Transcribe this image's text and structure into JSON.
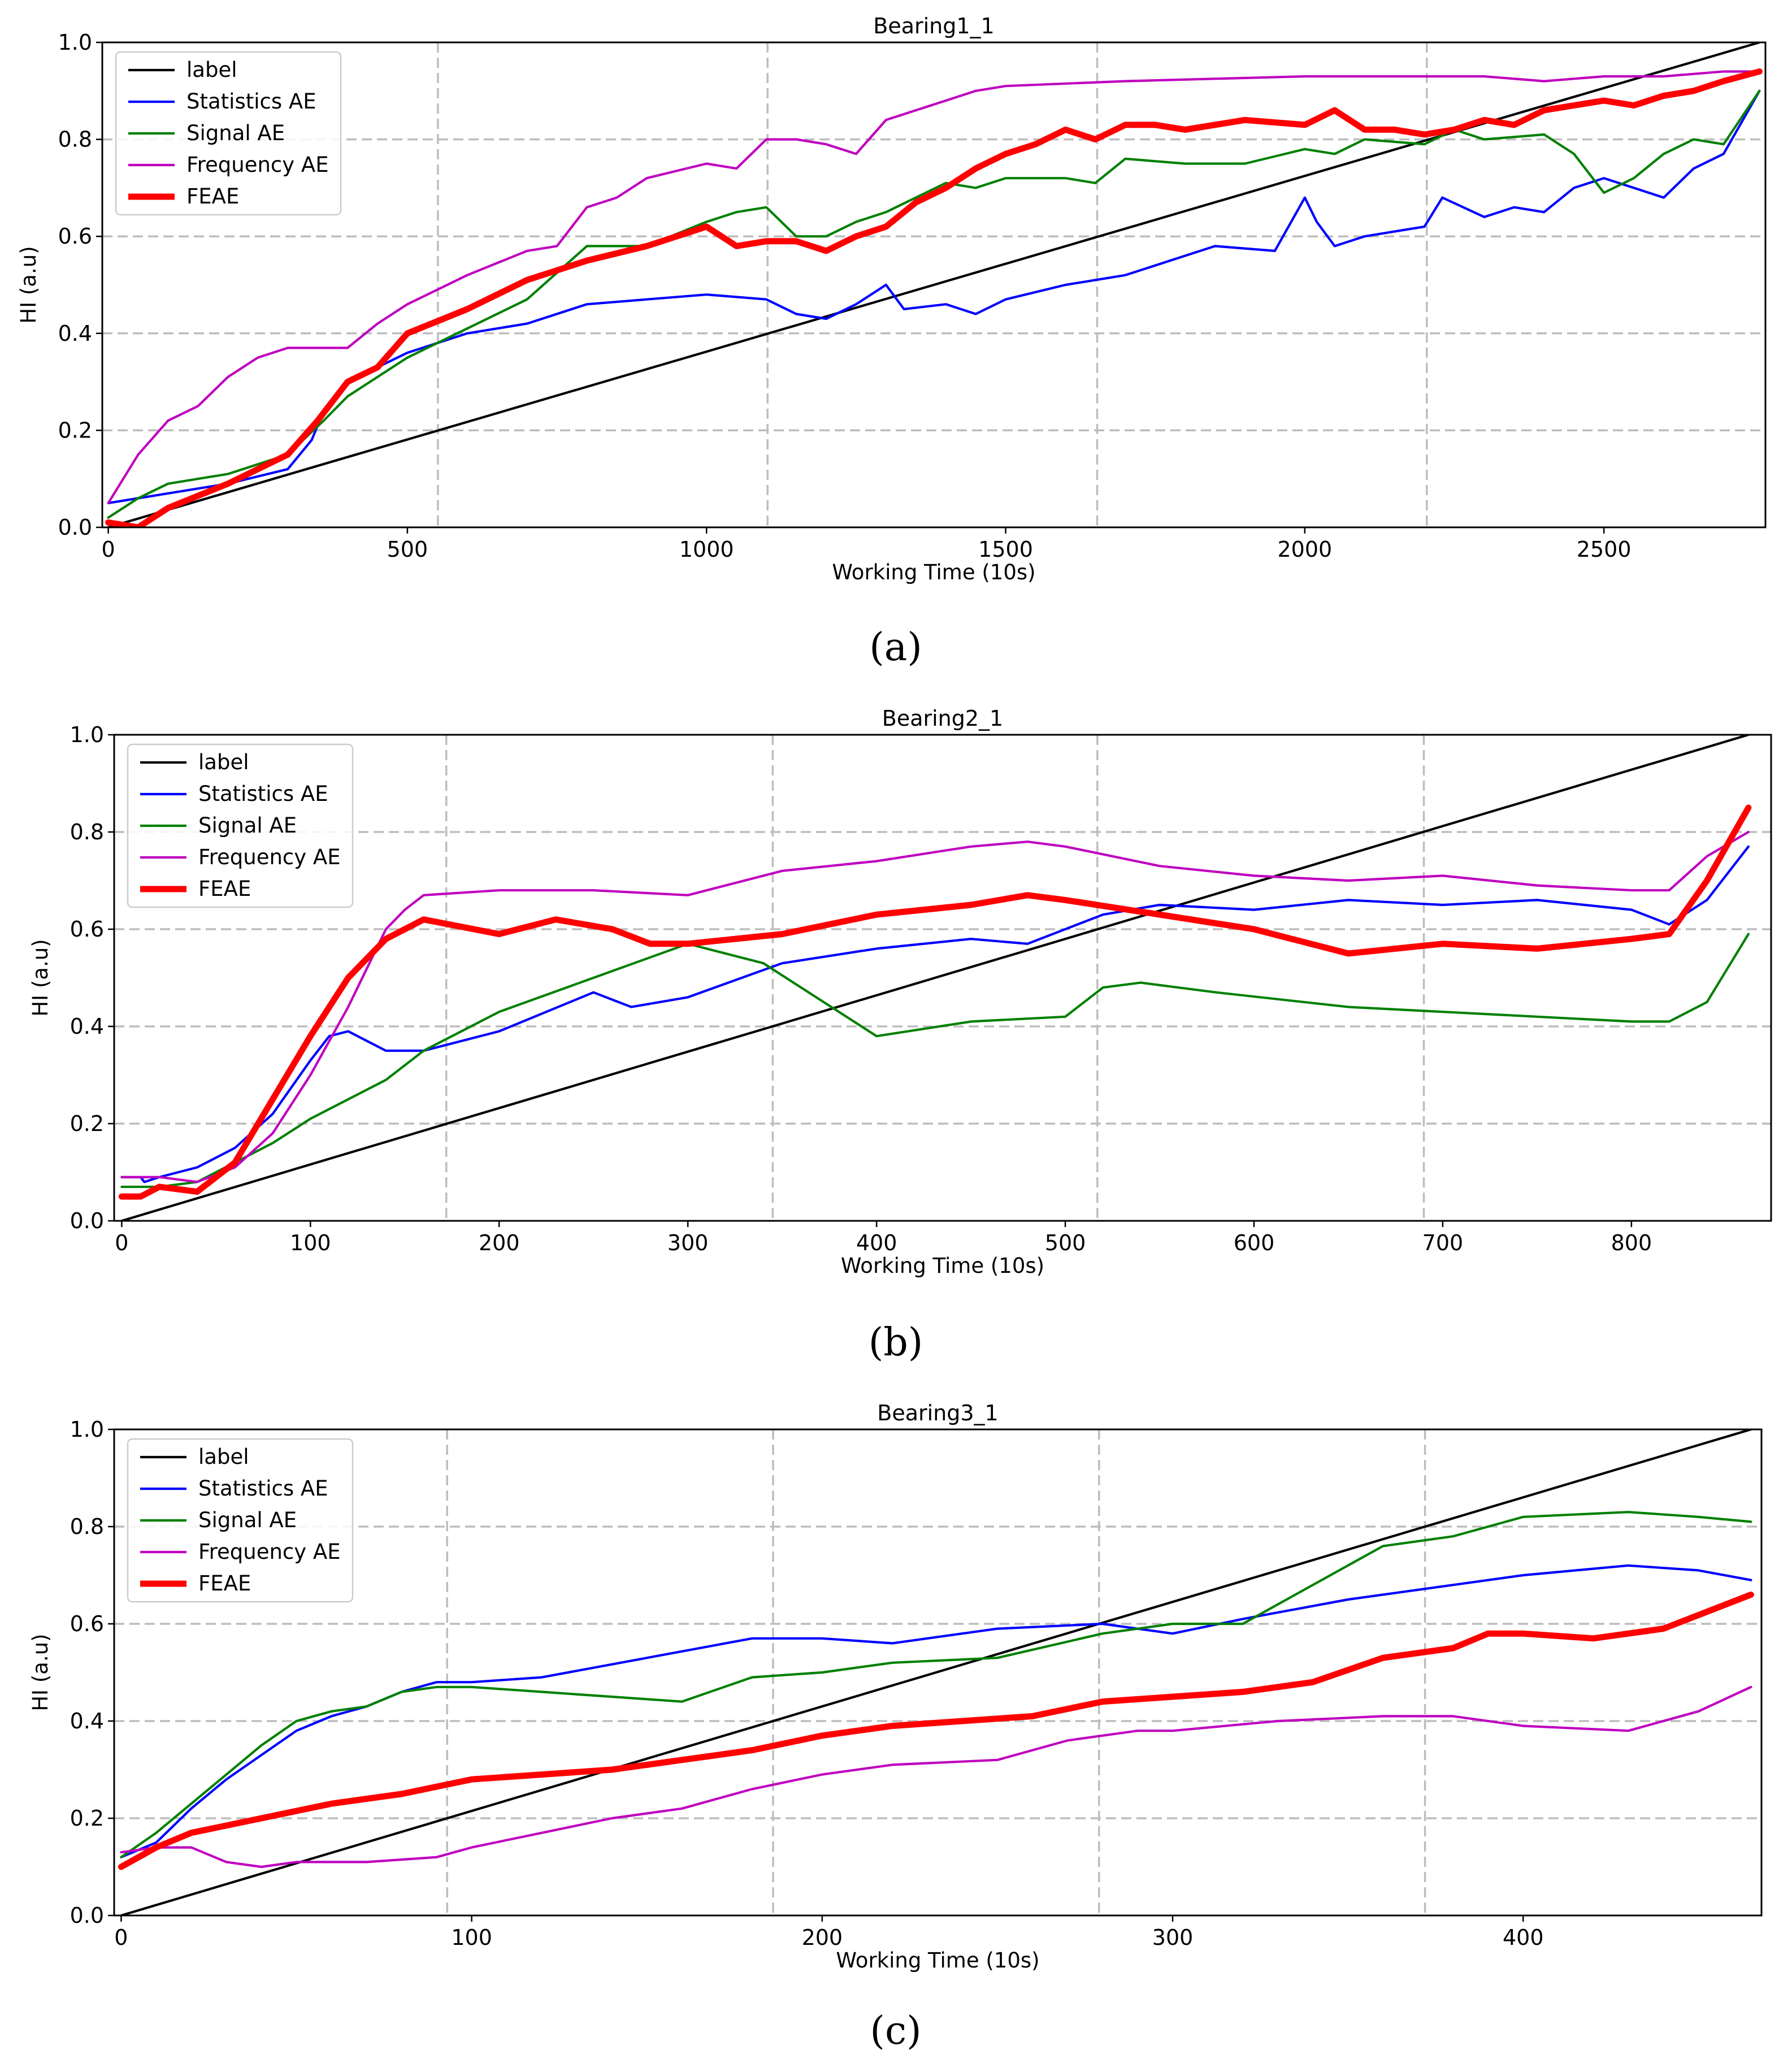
{
  "chart_data": [
    {
      "type": "line",
      "caption": "(a)",
      "title": "Bearing1_1",
      "xlabel": "Working Time (10s)",
      "ylabel": "HI (a.u)",
      "xlim": [
        -10,
        2770
      ],
      "ylim": [
        0.0,
        1.0
      ],
      "xticks": [
        0,
        500,
        1000,
        1500,
        2000,
        2500
      ],
      "yticks": [
        0.0,
        0.2,
        0.4,
        0.6,
        0.8,
        1.0
      ],
      "ytick_labels": [
        "0.0",
        "0.2",
        "0.4",
        "0.6",
        "0.8",
        "1.0"
      ],
      "dashed_vlines": [
        551,
        1102,
        1653,
        2204
      ],
      "dashed_hlines": [
        0.2,
        0.4,
        0.6,
        0.8
      ],
      "legend_position": "top-left",
      "series": [
        {
          "name": "label",
          "color": "#000000",
          "style": "thin",
          "x": [
            0,
            2760
          ],
          "y": [
            0.0,
            1.0
          ]
        },
        {
          "name": "Statistics AE",
          "color": "#0000ff",
          "style": "thin",
          "x": [
            0,
            50,
            100,
            200,
            300,
            340,
            360,
            400,
            500,
            600,
            700,
            800,
            900,
            1000,
            1100,
            1150,
            1200,
            1250,
            1300,
            1330,
            1400,
            1450,
            1500,
            1600,
            1700,
            1800,
            1850,
            1950,
            2000,
            2020,
            2050,
            2100,
            2150,
            2200,
            2230,
            2300,
            2350,
            2400,
            2450,
            2500,
            2550,
            2600,
            2650,
            2700,
            2760
          ],
          "y": [
            0.05,
            0.06,
            0.07,
            0.09,
            0.12,
            0.18,
            0.24,
            0.3,
            0.36,
            0.4,
            0.42,
            0.46,
            0.47,
            0.48,
            0.47,
            0.44,
            0.43,
            0.46,
            0.5,
            0.45,
            0.46,
            0.44,
            0.47,
            0.5,
            0.52,
            0.56,
            0.58,
            0.57,
            0.68,
            0.63,
            0.58,
            0.6,
            0.61,
            0.62,
            0.68,
            0.64,
            0.66,
            0.65,
            0.7,
            0.72,
            0.7,
            0.68,
            0.74,
            0.77,
            0.9
          ]
        },
        {
          "name": "Signal AE",
          "color": "#008000",
          "style": "thin",
          "x": [
            0,
            50,
            100,
            200,
            300,
            360,
            400,
            500,
            600,
            700,
            800,
            900,
            1000,
            1050,
            1100,
            1150,
            1200,
            1250,
            1300,
            1400,
            1450,
            1500,
            1600,
            1650,
            1700,
            1800,
            1900,
            2000,
            2050,
            2100,
            2200,
            2250,
            2300,
            2400,
            2450,
            2500,
            2550,
            2600,
            2650,
            2700,
            2760
          ],
          "y": [
            0.02,
            0.06,
            0.09,
            0.11,
            0.15,
            0.22,
            0.27,
            0.35,
            0.41,
            0.47,
            0.58,
            0.58,
            0.63,
            0.65,
            0.66,
            0.6,
            0.6,
            0.63,
            0.65,
            0.71,
            0.7,
            0.72,
            0.72,
            0.71,
            0.76,
            0.75,
            0.75,
            0.78,
            0.77,
            0.8,
            0.79,
            0.82,
            0.8,
            0.81,
            0.77,
            0.69,
            0.72,
            0.77,
            0.8,
            0.79,
            0.9
          ]
        },
        {
          "name": "Frequency AE",
          "color": "#bf00bf",
          "style": "thin",
          "x": [
            0,
            50,
            100,
            150,
            200,
            250,
            300,
            350,
            400,
            450,
            500,
            550,
            600,
            700,
            750,
            800,
            850,
            900,
            1000,
            1050,
            1100,
            1150,
            1200,
            1250,
            1300,
            1350,
            1400,
            1450,
            1500,
            1700,
            2000,
            2200,
            2300,
            2400,
            2500,
            2600,
            2700,
            2760
          ],
          "y": [
            0.05,
            0.15,
            0.22,
            0.25,
            0.31,
            0.35,
            0.37,
            0.37,
            0.37,
            0.42,
            0.46,
            0.49,
            0.52,
            0.57,
            0.58,
            0.66,
            0.68,
            0.72,
            0.75,
            0.74,
            0.8,
            0.8,
            0.79,
            0.77,
            0.84,
            0.86,
            0.88,
            0.9,
            0.91,
            0.92,
            0.93,
            0.93,
            0.93,
            0.92,
            0.93,
            0.93,
            0.94,
            0.94
          ]
        },
        {
          "name": "FEAE",
          "color": "#ff0000",
          "style": "thick",
          "x": [
            0,
            50,
            100,
            200,
            300,
            350,
            400,
            450,
            500,
            600,
            700,
            750,
            800,
            900,
            1000,
            1050,
            1100,
            1150,
            1200,
            1250,
            1300,
            1350,
            1400,
            1450,
            1500,
            1550,
            1600,
            1650,
            1700,
            1750,
            1800,
            1900,
            2000,
            2050,
            2100,
            2150,
            2200,
            2250,
            2300,
            2350,
            2400,
            2450,
            2500,
            2550,
            2600,
            2650,
            2700,
            2760
          ],
          "y": [
            0.01,
            0.0,
            0.04,
            0.09,
            0.15,
            0.22,
            0.3,
            0.33,
            0.4,
            0.45,
            0.51,
            0.53,
            0.55,
            0.58,
            0.62,
            0.58,
            0.59,
            0.59,
            0.57,
            0.6,
            0.62,
            0.67,
            0.7,
            0.74,
            0.77,
            0.79,
            0.82,
            0.8,
            0.83,
            0.83,
            0.82,
            0.84,
            0.83,
            0.86,
            0.82,
            0.82,
            0.81,
            0.82,
            0.84,
            0.83,
            0.86,
            0.87,
            0.88,
            0.87,
            0.89,
            0.9,
            0.92,
            0.94
          ]
        }
      ]
    },
    {
      "type": "line",
      "caption": "(b)",
      "title": "Bearing2_1",
      "xlabel": "Working Time (10s)",
      "ylabel": "HI (a.u)",
      "xlim": [
        -4,
        874
      ],
      "ylim": [
        0.0,
        1.0
      ],
      "xticks": [
        0,
        100,
        200,
        300,
        400,
        500,
        600,
        700,
        800
      ],
      "yticks": [
        0.0,
        0.2,
        0.4,
        0.6,
        0.8,
        1.0
      ],
      "ytick_labels": [
        "0.0",
        "0.2",
        "0.4",
        "0.6",
        "0.8",
        "1.0"
      ],
      "dashed_vlines": [
        172,
        345,
        517,
        690
      ],
      "dashed_hlines": [
        0.2,
        0.4,
        0.6,
        0.8
      ],
      "legend_position": "top-left",
      "series": [
        {
          "name": "label",
          "color": "#000000",
          "style": "thin",
          "x": [
            0,
            862
          ],
          "y": [
            0.0,
            1.0
          ]
        },
        {
          "name": "Statistics AE",
          "color": "#0000ff",
          "style": "thin",
          "x": [
            0,
            10,
            12,
            20,
            40,
            60,
            80,
            100,
            110,
            120,
            140,
            160,
            180,
            200,
            250,
            270,
            300,
            350,
            400,
            450,
            480,
            520,
            550,
            600,
            650,
            700,
            750,
            800,
            820,
            840,
            862
          ],
          "y": [
            0.09,
            0.09,
            0.08,
            0.09,
            0.11,
            0.15,
            0.22,
            0.33,
            0.38,
            0.39,
            0.35,
            0.35,
            0.37,
            0.39,
            0.47,
            0.44,
            0.46,
            0.53,
            0.56,
            0.58,
            0.57,
            0.63,
            0.65,
            0.64,
            0.66,
            0.65,
            0.66,
            0.64,
            0.61,
            0.66,
            0.77
          ]
        },
        {
          "name": "Signal AE",
          "color": "#008000",
          "style": "thin",
          "x": [
            0,
            20,
            40,
            60,
            80,
            100,
            120,
            140,
            160,
            180,
            200,
            250,
            300,
            340,
            400,
            450,
            500,
            520,
            540,
            580,
            650,
            700,
            750,
            800,
            820,
            840,
            862
          ],
          "y": [
            0.07,
            0.07,
            0.08,
            0.12,
            0.16,
            0.21,
            0.25,
            0.29,
            0.35,
            0.39,
            0.43,
            0.5,
            0.57,
            0.53,
            0.38,
            0.41,
            0.42,
            0.48,
            0.49,
            0.47,
            0.44,
            0.43,
            0.42,
            0.41,
            0.41,
            0.45,
            0.59
          ]
        },
        {
          "name": "Frequency AE",
          "color": "#bf00bf",
          "style": "thin",
          "x": [
            0,
            20,
            40,
            60,
            80,
            100,
            120,
            140,
            150,
            160,
            200,
            250,
            300,
            350,
            400,
            450,
            480,
            500,
            550,
            600,
            650,
            700,
            750,
            800,
            820,
            840,
            862
          ],
          "y": [
            0.09,
            0.09,
            0.08,
            0.11,
            0.18,
            0.3,
            0.44,
            0.6,
            0.64,
            0.67,
            0.68,
            0.68,
            0.67,
            0.72,
            0.74,
            0.77,
            0.78,
            0.77,
            0.73,
            0.71,
            0.7,
            0.71,
            0.69,
            0.68,
            0.68,
            0.75,
            0.8
          ]
        },
        {
          "name": "FEAE",
          "color": "#ff0000",
          "style": "thick",
          "x": [
            0,
            10,
            20,
            40,
            60,
            80,
            100,
            120,
            140,
            150,
            160,
            200,
            230,
            260,
            280,
            300,
            350,
            400,
            450,
            480,
            500,
            550,
            600,
            650,
            700,
            750,
            800,
            820,
            840,
            862
          ],
          "y": [
            0.05,
            0.05,
            0.07,
            0.06,
            0.12,
            0.25,
            0.38,
            0.5,
            0.58,
            0.6,
            0.62,
            0.59,
            0.62,
            0.6,
            0.57,
            0.57,
            0.59,
            0.63,
            0.65,
            0.67,
            0.66,
            0.63,
            0.6,
            0.55,
            0.57,
            0.56,
            0.58,
            0.59,
            0.7,
            0.85
          ]
        }
      ]
    },
    {
      "type": "line",
      "caption": "(c)",
      "title": "Bearing3_1",
      "xlabel": "Working Time (10s)",
      "ylabel": "HI (a.u)",
      "xlim": [
        -2,
        468
      ],
      "ylim": [
        0.0,
        1.0
      ],
      "xticks": [
        0,
        100,
        200,
        300,
        400
      ],
      "yticks": [
        0.0,
        0.2,
        0.4,
        0.6,
        0.8,
        1.0
      ],
      "ytick_labels": [
        "0.0",
        "0.2",
        "0.4",
        "0.6",
        "0.8",
        "1.0"
      ],
      "dashed_vlines": [
        93,
        186,
        279,
        372
      ],
      "dashed_hlines": [
        0.2,
        0.4,
        0.6,
        0.8
      ],
      "legend_position": "top-left",
      "series": [
        {
          "name": "label",
          "color": "#000000",
          "style": "thin",
          "x": [
            0,
            465
          ],
          "y": [
            0.0,
            1.0
          ]
        },
        {
          "name": "Statistics AE",
          "color": "#0000ff",
          "style": "thin",
          "x": [
            0,
            10,
            20,
            30,
            40,
            50,
            60,
            70,
            80,
            90,
            100,
            120,
            150,
            180,
            200,
            220,
            250,
            280,
            300,
            320,
            350,
            380,
            400,
            430,
            450,
            465
          ],
          "y": [
            0.12,
            0.15,
            0.22,
            0.28,
            0.33,
            0.38,
            0.41,
            0.43,
            0.46,
            0.48,
            0.48,
            0.49,
            0.53,
            0.57,
            0.57,
            0.56,
            0.59,
            0.6,
            0.58,
            0.61,
            0.65,
            0.68,
            0.7,
            0.72,
            0.71,
            0.69
          ]
        },
        {
          "name": "Signal AE",
          "color": "#008000",
          "style": "thin",
          "x": [
            0,
            10,
            20,
            30,
            40,
            50,
            60,
            70,
            80,
            90,
            100,
            120,
            140,
            160,
            180,
            200,
            220,
            250,
            280,
            300,
            320,
            340,
            360,
            380,
            400,
            430,
            450,
            465
          ],
          "y": [
            0.12,
            0.17,
            0.23,
            0.29,
            0.35,
            0.4,
            0.42,
            0.43,
            0.46,
            0.47,
            0.47,
            0.46,
            0.45,
            0.44,
            0.49,
            0.5,
            0.52,
            0.53,
            0.58,
            0.6,
            0.6,
            0.68,
            0.76,
            0.78,
            0.82,
            0.83,
            0.82,
            0.81
          ]
        },
        {
          "name": "Frequency AE",
          "color": "#bf00bf",
          "style": "thin",
          "x": [
            0,
            10,
            20,
            30,
            40,
            50,
            70,
            90,
            100,
            120,
            140,
            160,
            180,
            200,
            220,
            250,
            270,
            290,
            300,
            330,
            360,
            380,
            400,
            430,
            450,
            465
          ],
          "y": [
            0.13,
            0.14,
            0.14,
            0.11,
            0.1,
            0.11,
            0.11,
            0.12,
            0.14,
            0.17,
            0.2,
            0.22,
            0.26,
            0.29,
            0.31,
            0.32,
            0.36,
            0.38,
            0.38,
            0.4,
            0.41,
            0.41,
            0.39,
            0.38,
            0.42,
            0.47
          ]
        },
        {
          "name": "FEAE",
          "color": "#ff0000",
          "style": "thick",
          "x": [
            0,
            10,
            20,
            40,
            60,
            80,
            100,
            120,
            140,
            160,
            180,
            200,
            220,
            240,
            260,
            280,
            300,
            320,
            340,
            360,
            380,
            390,
            400,
            420,
            440,
            465
          ],
          "y": [
            0.1,
            0.14,
            0.17,
            0.2,
            0.23,
            0.25,
            0.28,
            0.29,
            0.3,
            0.32,
            0.34,
            0.37,
            0.39,
            0.4,
            0.41,
            0.44,
            0.45,
            0.46,
            0.48,
            0.53,
            0.55,
            0.58,
            0.58,
            0.57,
            0.59,
            0.66
          ]
        }
      ]
    }
  ]
}
